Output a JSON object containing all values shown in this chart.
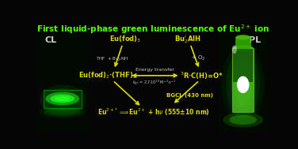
{
  "title": "First liquid-phase green luminescence of Eu$^{2+}$ ion",
  "title_color": "#55ff00",
  "bg_color": "#050505",
  "yellow": "#dddd00",
  "white": "#cccccc",
  "cl_label": "CL",
  "pl_label": "PL",
  "figsize": [
    3.76,
    1.89
  ],
  "dpi": 100,
  "node_tl": "Eu(fod)$_3$",
  "node_tr": "Bu$^i_2$AlH",
  "node_ml": "Eu(fod)$_2$·(THF)$_2$",
  "node_mr": "$^3$R·C(H)=O*",
  "node_bot": "Eu$^{2+*}$$\\Longrightarrow$Eu$^{2+}$ + h$\\nu$ (555±10 nm)",
  "lbl_left_arrow": "THF  + Bu$^i_2$AlH",
  "lbl_right_arrow": "+ O$_2$",
  "lbl_energy": "Energy transfer",
  "lbl_ket": "$k_{ET}$ = 2.7·10$^{10}$ M$^{-1}$·s$^{-1}$",
  "lbl_bgcl": "BGCL (430 nm)"
}
